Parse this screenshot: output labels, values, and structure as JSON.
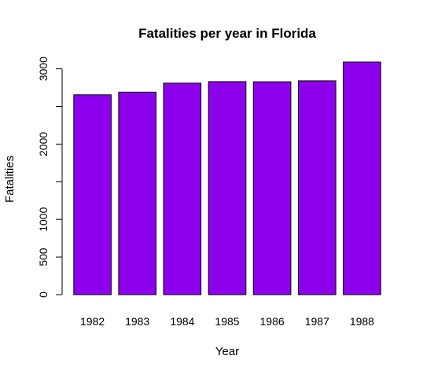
{
  "chart_data": {
    "type": "bar",
    "title": "Fatalities per year in Florida",
    "xlabel": "Year",
    "ylabel": "Fatalities",
    "categories": [
      "1982",
      "1983",
      "1984",
      "1985",
      "1986",
      "1987",
      "1988"
    ],
    "values": [
      2655,
      2690,
      2810,
      2830,
      2828,
      2840,
      3090
    ],
    "ylim": [
      0,
      3090
    ],
    "yticks": [
      0,
      500,
      1000,
      1500,
      2000,
      2500,
      3000
    ],
    "ytick_labels": [
      "0",
      "500",
      "1000",
      "",
      "2000",
      "",
      "3000"
    ],
    "bar_color": "#8C00EC",
    "grid": false,
    "legend": "none"
  }
}
